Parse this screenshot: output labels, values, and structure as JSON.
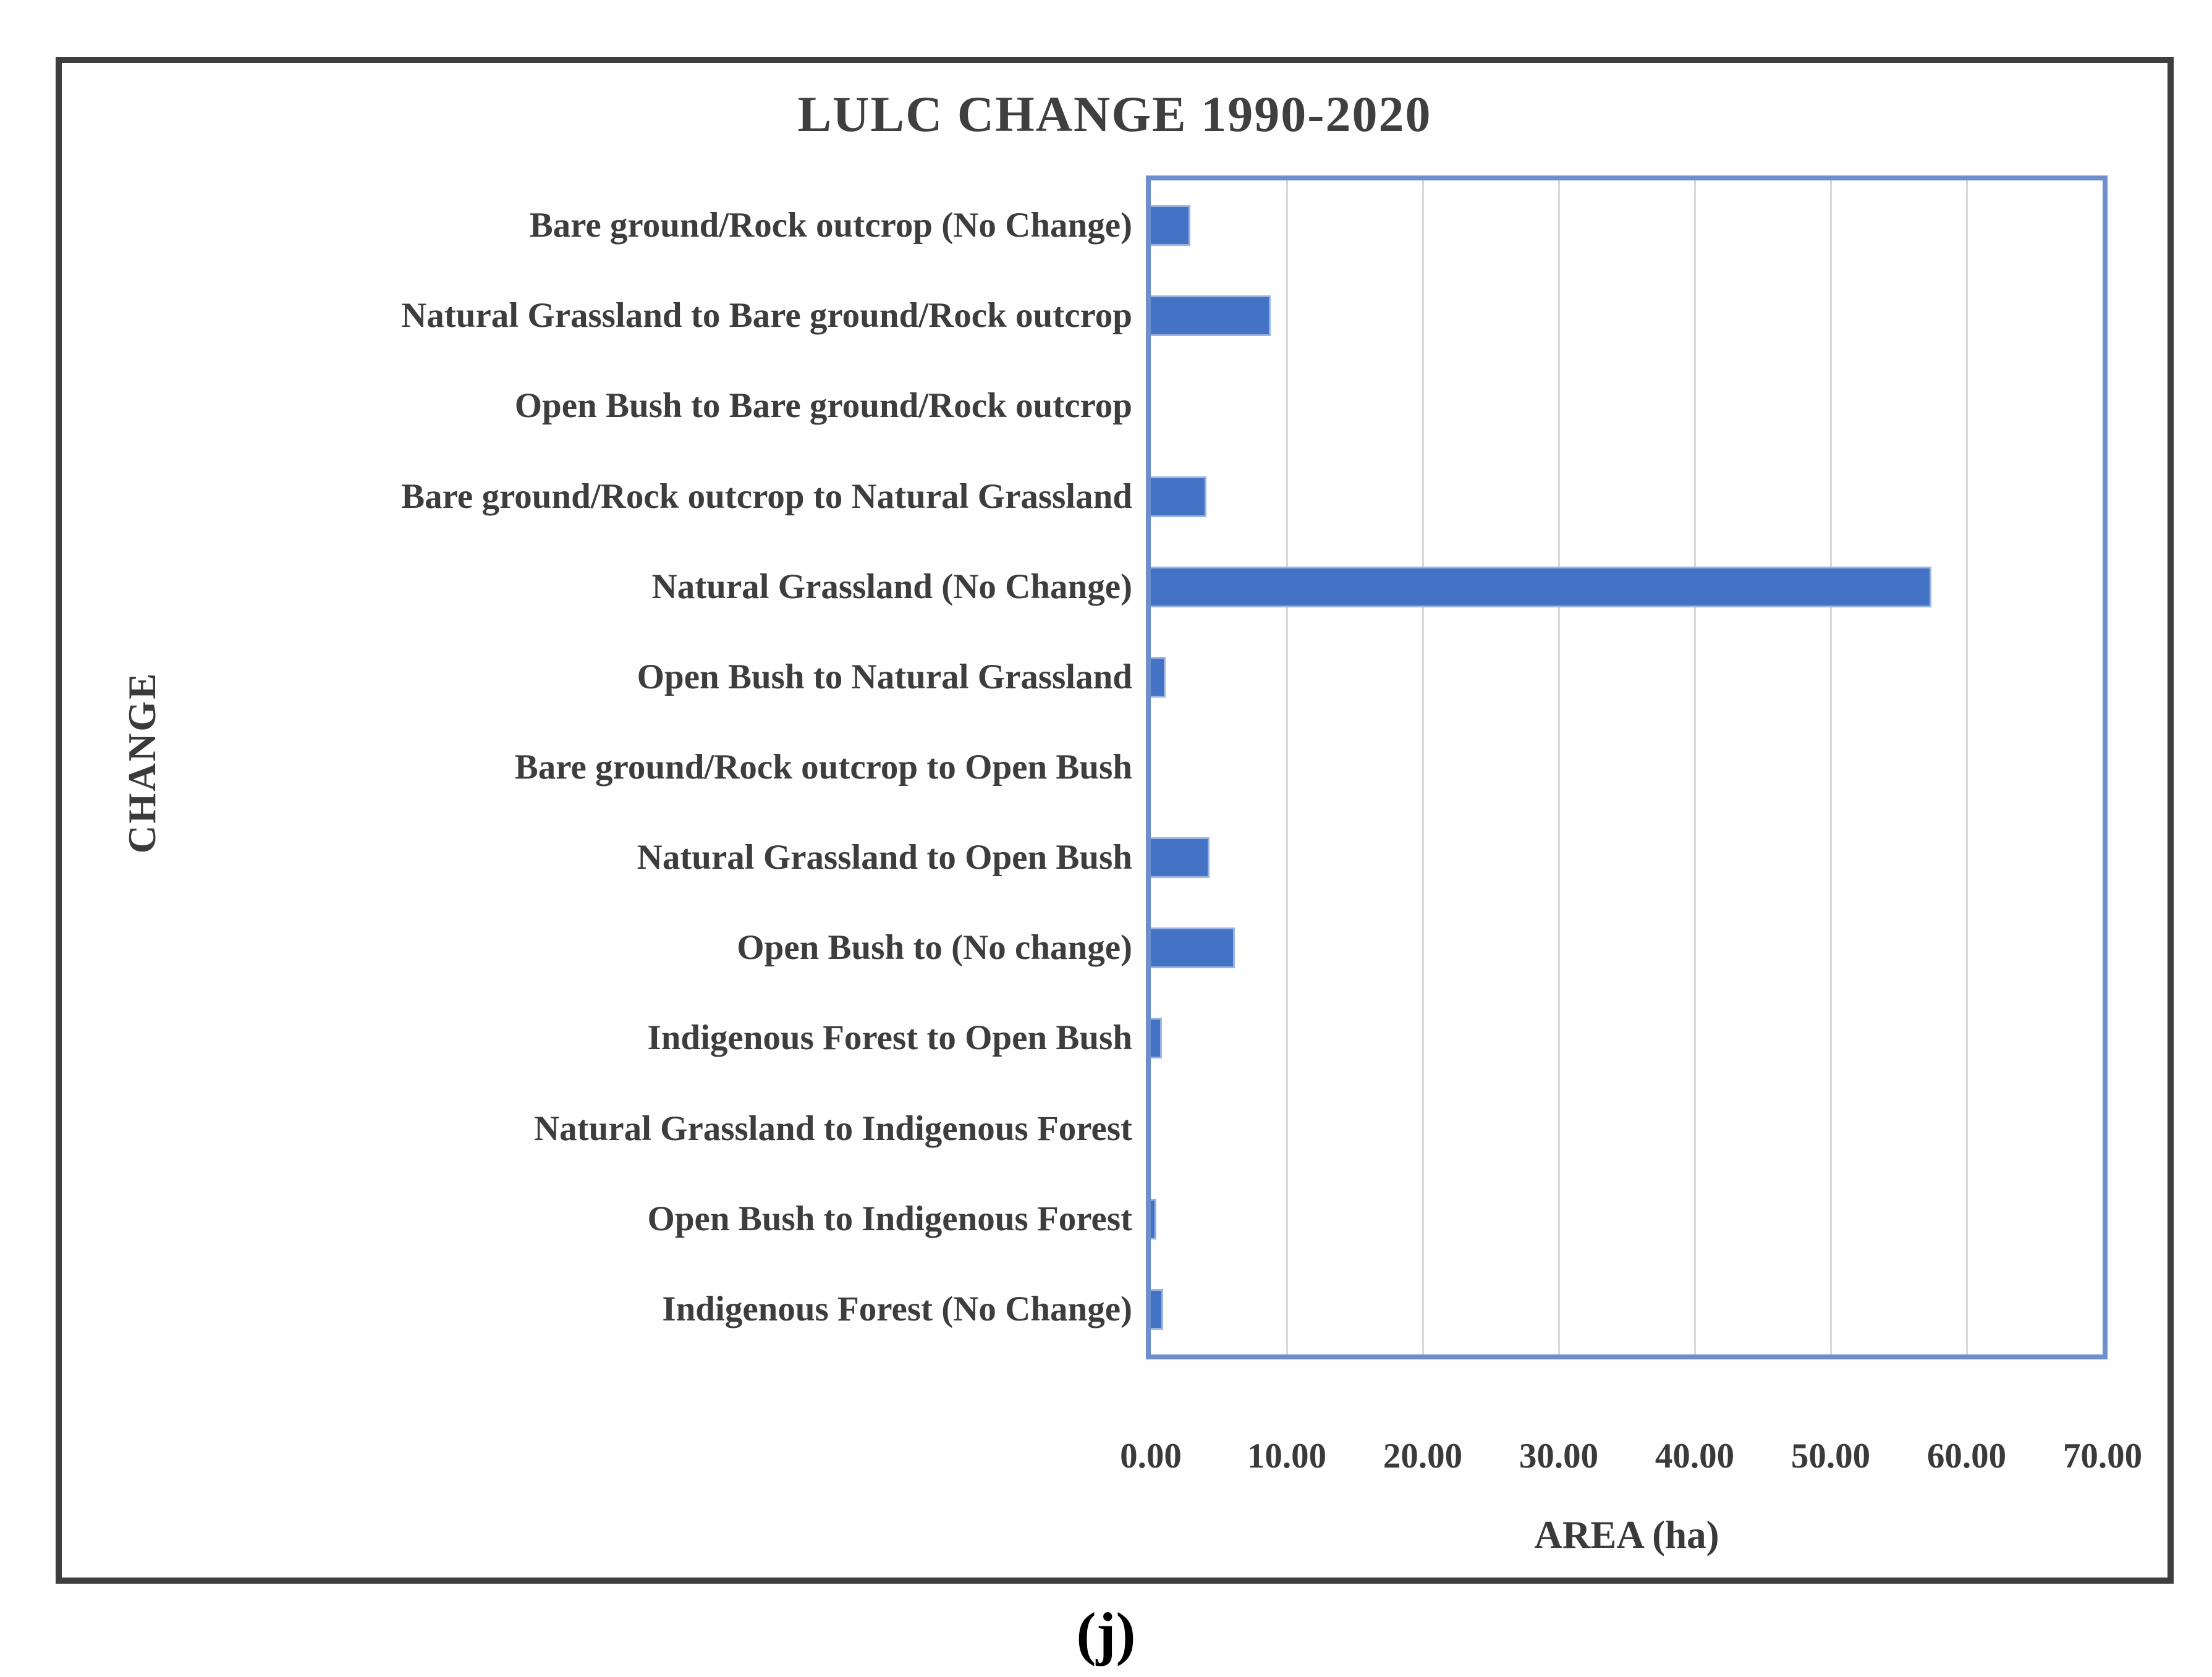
{
  "figure": {
    "caption": "(j)"
  },
  "chart_data": {
    "type": "bar",
    "orientation": "horizontal",
    "title": "LULC CHANGE 1990-2020",
    "xlabel": "AREA (ha)",
    "ylabel": "CHANGE",
    "xlim": [
      0,
      70
    ],
    "x_tick_labels": [
      "0.00",
      "10.00",
      "20.00",
      "30.00",
      "40.00",
      "50.00",
      "60.00",
      "70.00"
    ],
    "grid": "vertical-only",
    "legend": "none",
    "categories": [
      "Bare ground/Rock outcrop (No Change)",
      "Natural Grassland to Bare ground/Rock outcrop",
      "Open Bush to Bare ground/Rock outcrop",
      "Bare ground/Rock outcrop to Natural Grassland",
      "Natural Grassland (No Change)",
      "Open Bush to Natural Grassland",
      "Bare ground/Rock outcrop to Open Bush",
      "Natural Grassland to Open Bush",
      "Open Bush to (No change)",
      "Indigenous Forest to Open Bush",
      "Natural Grassland to Indigenous Forest",
      "Open Bush to Indigenous Forest",
      "Indigenous Forest (No Change)"
    ],
    "values": [
      2.9,
      8.8,
      0.0,
      4.1,
      57.4,
      1.1,
      0.0,
      4.3,
      6.2,
      0.8,
      0.0,
      0.4,
      0.9
    ],
    "colors": {
      "bar_fill": "#4472C4",
      "bar_border": "#9AB5E2",
      "plot_border": "#6D8FCE",
      "gridline": "#D8D8D8",
      "text": "#3F3F3F",
      "figure_border": "#3E3E3E",
      "caption_text": "#000000"
    }
  }
}
